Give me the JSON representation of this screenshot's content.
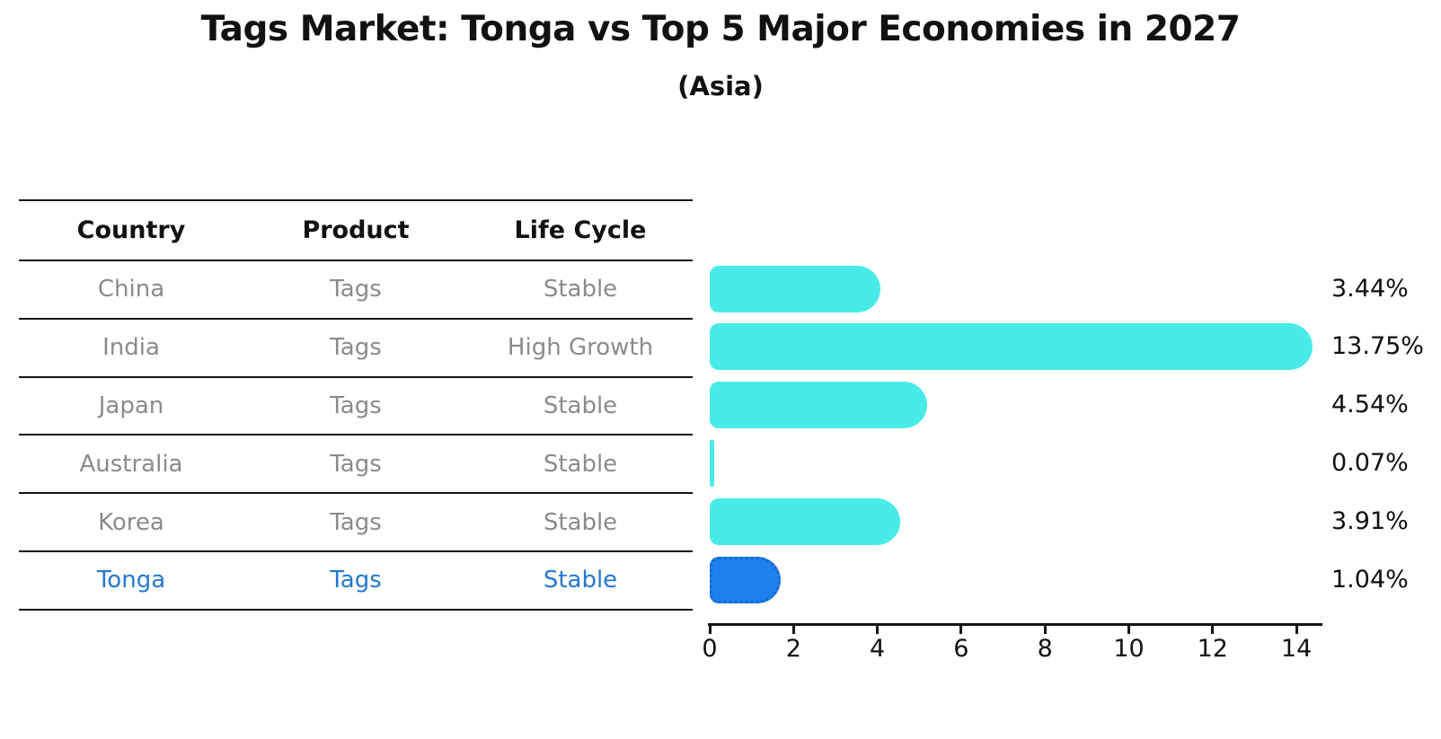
{
  "title": "Tags Market: Tonga vs Top 5 Major Economies in 2027",
  "subtitle": "(Asia)",
  "table": {
    "headers": [
      "Country",
      "Product",
      "Life Cycle"
    ],
    "rows": [
      {
        "country": "China",
        "product": "Tags",
        "life_cycle": "Stable",
        "highlight": false
      },
      {
        "country": "India",
        "product": "Tags",
        "life_cycle": "High Growth",
        "highlight": false
      },
      {
        "country": "Japan",
        "product": "Tags",
        "life_cycle": "Stable",
        "highlight": false
      },
      {
        "country": "Australia",
        "product": "Tags",
        "life_cycle": "Stable",
        "highlight": false
      },
      {
        "country": "Korea",
        "product": "Tags",
        "life_cycle": "Stable",
        "highlight": false
      },
      {
        "country": "Tonga",
        "product": "Tags",
        "life_cycle": "Stable",
        "highlight": true
      }
    ]
  },
  "chart_data": {
    "type": "bar",
    "orientation": "horizontal",
    "title": "Tags Market: Tonga vs Top 5 Major Economies in 2027",
    "subtitle": "(Asia)",
    "categories": [
      "China",
      "India",
      "Japan",
      "Australia",
      "Korea",
      "Tonga"
    ],
    "values": [
      3.44,
      13.75,
      4.54,
      0.07,
      3.91,
      1.04
    ],
    "value_labels": [
      "3.44%",
      "13.75%",
      "4.54%",
      "0.07%",
      "3.91%",
      "1.04%"
    ],
    "x_ticks": [
      0,
      2,
      4,
      6,
      8,
      10,
      12,
      14
    ],
    "xlim": [
      0,
      14.6
    ],
    "xlabel": "",
    "ylabel": "",
    "grid": false,
    "legend": false,
    "bar_color": "#48EBE8",
    "highlight_color": "#1E80EB",
    "highlight_index": 5,
    "highlight_text_color": "#2478CE",
    "axis_color": "#141414",
    "row_text_color": "#8b8b8b"
  }
}
